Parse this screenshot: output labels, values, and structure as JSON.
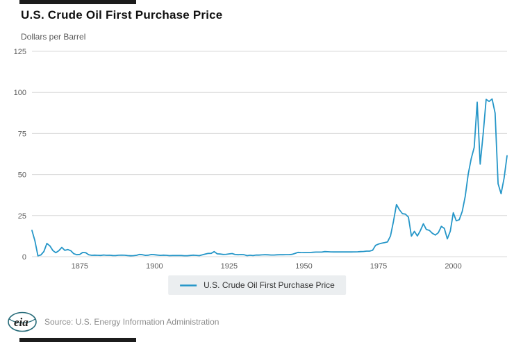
{
  "header": {
    "title": "U.S. Crude Oil First Purchase Price",
    "units": "Dollars per Barrel"
  },
  "legend": {
    "label": "U.S. Crude Oil First Purchase Price"
  },
  "footer": {
    "logo": "eia",
    "source": "Source: U.S. Energy Information Administration"
  },
  "colors": {
    "line": "#2596c8",
    "grid": "#d9d9d9",
    "axis_text": "#5b5b5b",
    "legend_bg": "#ebeef0",
    "source": "#8c8c8c",
    "crop_bar": "#1c1c1c",
    "logo": "#256a78",
    "title": "#111111",
    "subtitle": "#595959"
  },
  "chart_data": {
    "type": "line",
    "title": "U.S. Crude Oil First Purchase Price",
    "xlabel": "",
    "ylabel": "Dollars per Barrel",
    "x_ticks": [
      1875,
      1900,
      1925,
      1950,
      1975,
      2000
    ],
    "y_ticks": [
      0,
      25,
      50,
      75,
      100,
      125
    ],
    "xlim": [
      1859,
      2018
    ],
    "ylim": [
      0,
      125
    ],
    "grid": true,
    "legend_position": "bottom",
    "series": [
      {
        "name": "U.S. Crude Oil First Purchase Price",
        "color": "#2596c8",
        "x": [
          1859,
          1860,
          1861,
          1862,
          1863,
          1864,
          1865,
          1866,
          1867,
          1868,
          1869,
          1870,
          1871,
          1872,
          1873,
          1874,
          1875,
          1876,
          1877,
          1878,
          1879,
          1880,
          1881,
          1882,
          1883,
          1884,
          1885,
          1886,
          1887,
          1888,
          1889,
          1890,
          1891,
          1892,
          1893,
          1894,
          1895,
          1896,
          1897,
          1898,
          1899,
          1900,
          1901,
          1902,
          1903,
          1904,
          1905,
          1906,
          1907,
          1908,
          1909,
          1910,
          1911,
          1912,
          1913,
          1914,
          1915,
          1916,
          1917,
          1918,
          1919,
          1920,
          1921,
          1922,
          1923,
          1924,
          1925,
          1926,
          1927,
          1928,
          1929,
          1930,
          1931,
          1932,
          1933,
          1934,
          1935,
          1936,
          1937,
          1938,
          1939,
          1940,
          1941,
          1942,
          1943,
          1944,
          1945,
          1946,
          1947,
          1948,
          1949,
          1950,
          1951,
          1952,
          1953,
          1954,
          1955,
          1956,
          1957,
          1958,
          1959,
          1960,
          1961,
          1962,
          1963,
          1964,
          1965,
          1966,
          1967,
          1968,
          1969,
          1970,
          1971,
          1972,
          1973,
          1974,
          1975,
          1976,
          1977,
          1978,
          1979,
          1980,
          1981,
          1982,
          1983,
          1984,
          1985,
          1986,
          1987,
          1988,
          1989,
          1990,
          1991,
          1992,
          1993,
          1994,
          1995,
          1996,
          1997,
          1998,
          1999,
          2000,
          2001,
          2002,
          2003,
          2004,
          2005,
          2006,
          2007,
          2008,
          2009,
          2010,
          2011,
          2012,
          2013,
          2014,
          2015,
          2016,
          2017,
          2018
        ],
        "values": [
          16.0,
          9.59,
          0.49,
          1.05,
          3.15,
          8.06,
          6.59,
          3.74,
          2.41,
          3.62,
          5.64,
          3.86,
          4.34,
          3.64,
          1.83,
          1.17,
          1.35,
          2.56,
          2.42,
          1.19,
          0.86,
          0.95,
          0.86,
          0.78,
          1.0,
          0.84,
          0.88,
          0.71,
          0.67,
          0.88,
          0.94,
          0.87,
          0.67,
          0.56,
          0.64,
          0.84,
          1.36,
          1.18,
          0.79,
          0.91,
          1.29,
          1.19,
          0.96,
          0.8,
          0.94,
          0.86,
          0.62,
          0.73,
          0.72,
          0.72,
          0.7,
          0.61,
          0.61,
          0.74,
          0.95,
          0.81,
          0.64,
          1.1,
          1.56,
          1.98,
          2.01,
          3.07,
          1.73,
          1.61,
          1.34,
          1.43,
          1.68,
          1.88,
          1.3,
          1.17,
          1.27,
          1.19,
          0.65,
          0.87,
          0.67,
          1.0,
          0.97,
          1.09,
          1.18,
          1.13,
          1.02,
          1.02,
          1.14,
          1.19,
          1.2,
          1.21,
          1.22,
          1.41,
          1.93,
          2.6,
          2.54,
          2.51,
          2.53,
          2.53,
          2.68,
          2.78,
          2.77,
          2.79,
          3.09,
          3.01,
          2.9,
          2.88,
          2.89,
          2.9,
          2.89,
          2.88,
          2.86,
          2.88,
          2.92,
          2.94,
          3.09,
          3.18,
          3.39,
          3.39,
          3.89,
          6.87,
          7.67,
          8.19,
          8.57,
          9.0,
          12.64,
          21.59,
          31.77,
          28.52,
          26.19,
          25.88,
          24.09,
          12.51,
          15.4,
          12.58,
          15.86,
          20.03,
          16.54,
          15.99,
          14.25,
          13.19,
          14.62,
          18.46,
          17.23,
          10.87,
          15.56,
          26.72,
          21.84,
          22.51,
          27.56,
          36.77,
          50.28,
          59.69,
          66.52,
          94.04,
          56.35,
          74.71,
          95.73,
          94.52,
          95.99,
          87.39,
          44.39,
          38.29,
          47.7,
          61.45
        ]
      }
    ]
  }
}
